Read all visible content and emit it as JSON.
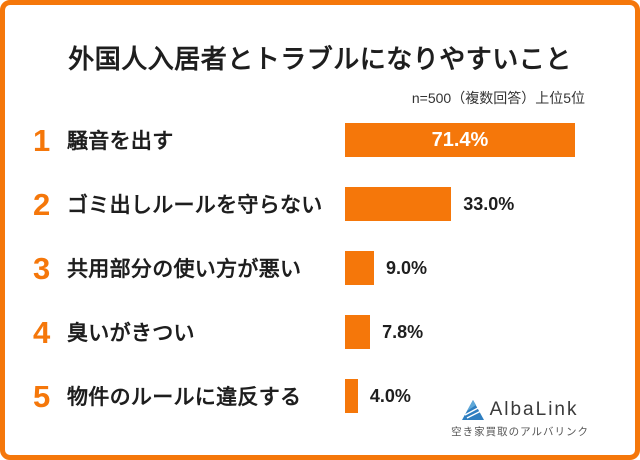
{
  "title": "外国人入居者とトラブルになりやすいこと",
  "note": "n=500（複数回答）上位5位",
  "chart_data": {
    "type": "bar",
    "orientation": "horizontal",
    "title": "外国人入居者とトラブルになりやすいこと",
    "note": "n=500（複数回答）上位5位",
    "categories": [
      "騒音を出す",
      "ゴミ出しルールを守らない",
      "共用部分の使い方が悪い",
      "臭いがきつい",
      "物件のルールに違反する"
    ],
    "values": [
      71.4,
      33.0,
      9.0,
      7.8,
      4.0
    ],
    "value_labels": [
      "71.4%",
      "33.0%",
      "9.0%",
      "7.8%",
      "4.0%"
    ],
    "ranks": [
      "1",
      "2",
      "3",
      "4",
      "5"
    ],
    "bar_color": "#F5770A",
    "xlim": [
      0,
      100
    ],
    "grid": false,
    "legend": false
  },
  "colors": {
    "accent_orange": "#F5770A",
    "text_dark": "#1E1E1E",
    "logo_blue": "#2E7EC0"
  },
  "logo": {
    "name": "AlbaLink",
    "tagline": "空き家買取のアルバリンク"
  }
}
